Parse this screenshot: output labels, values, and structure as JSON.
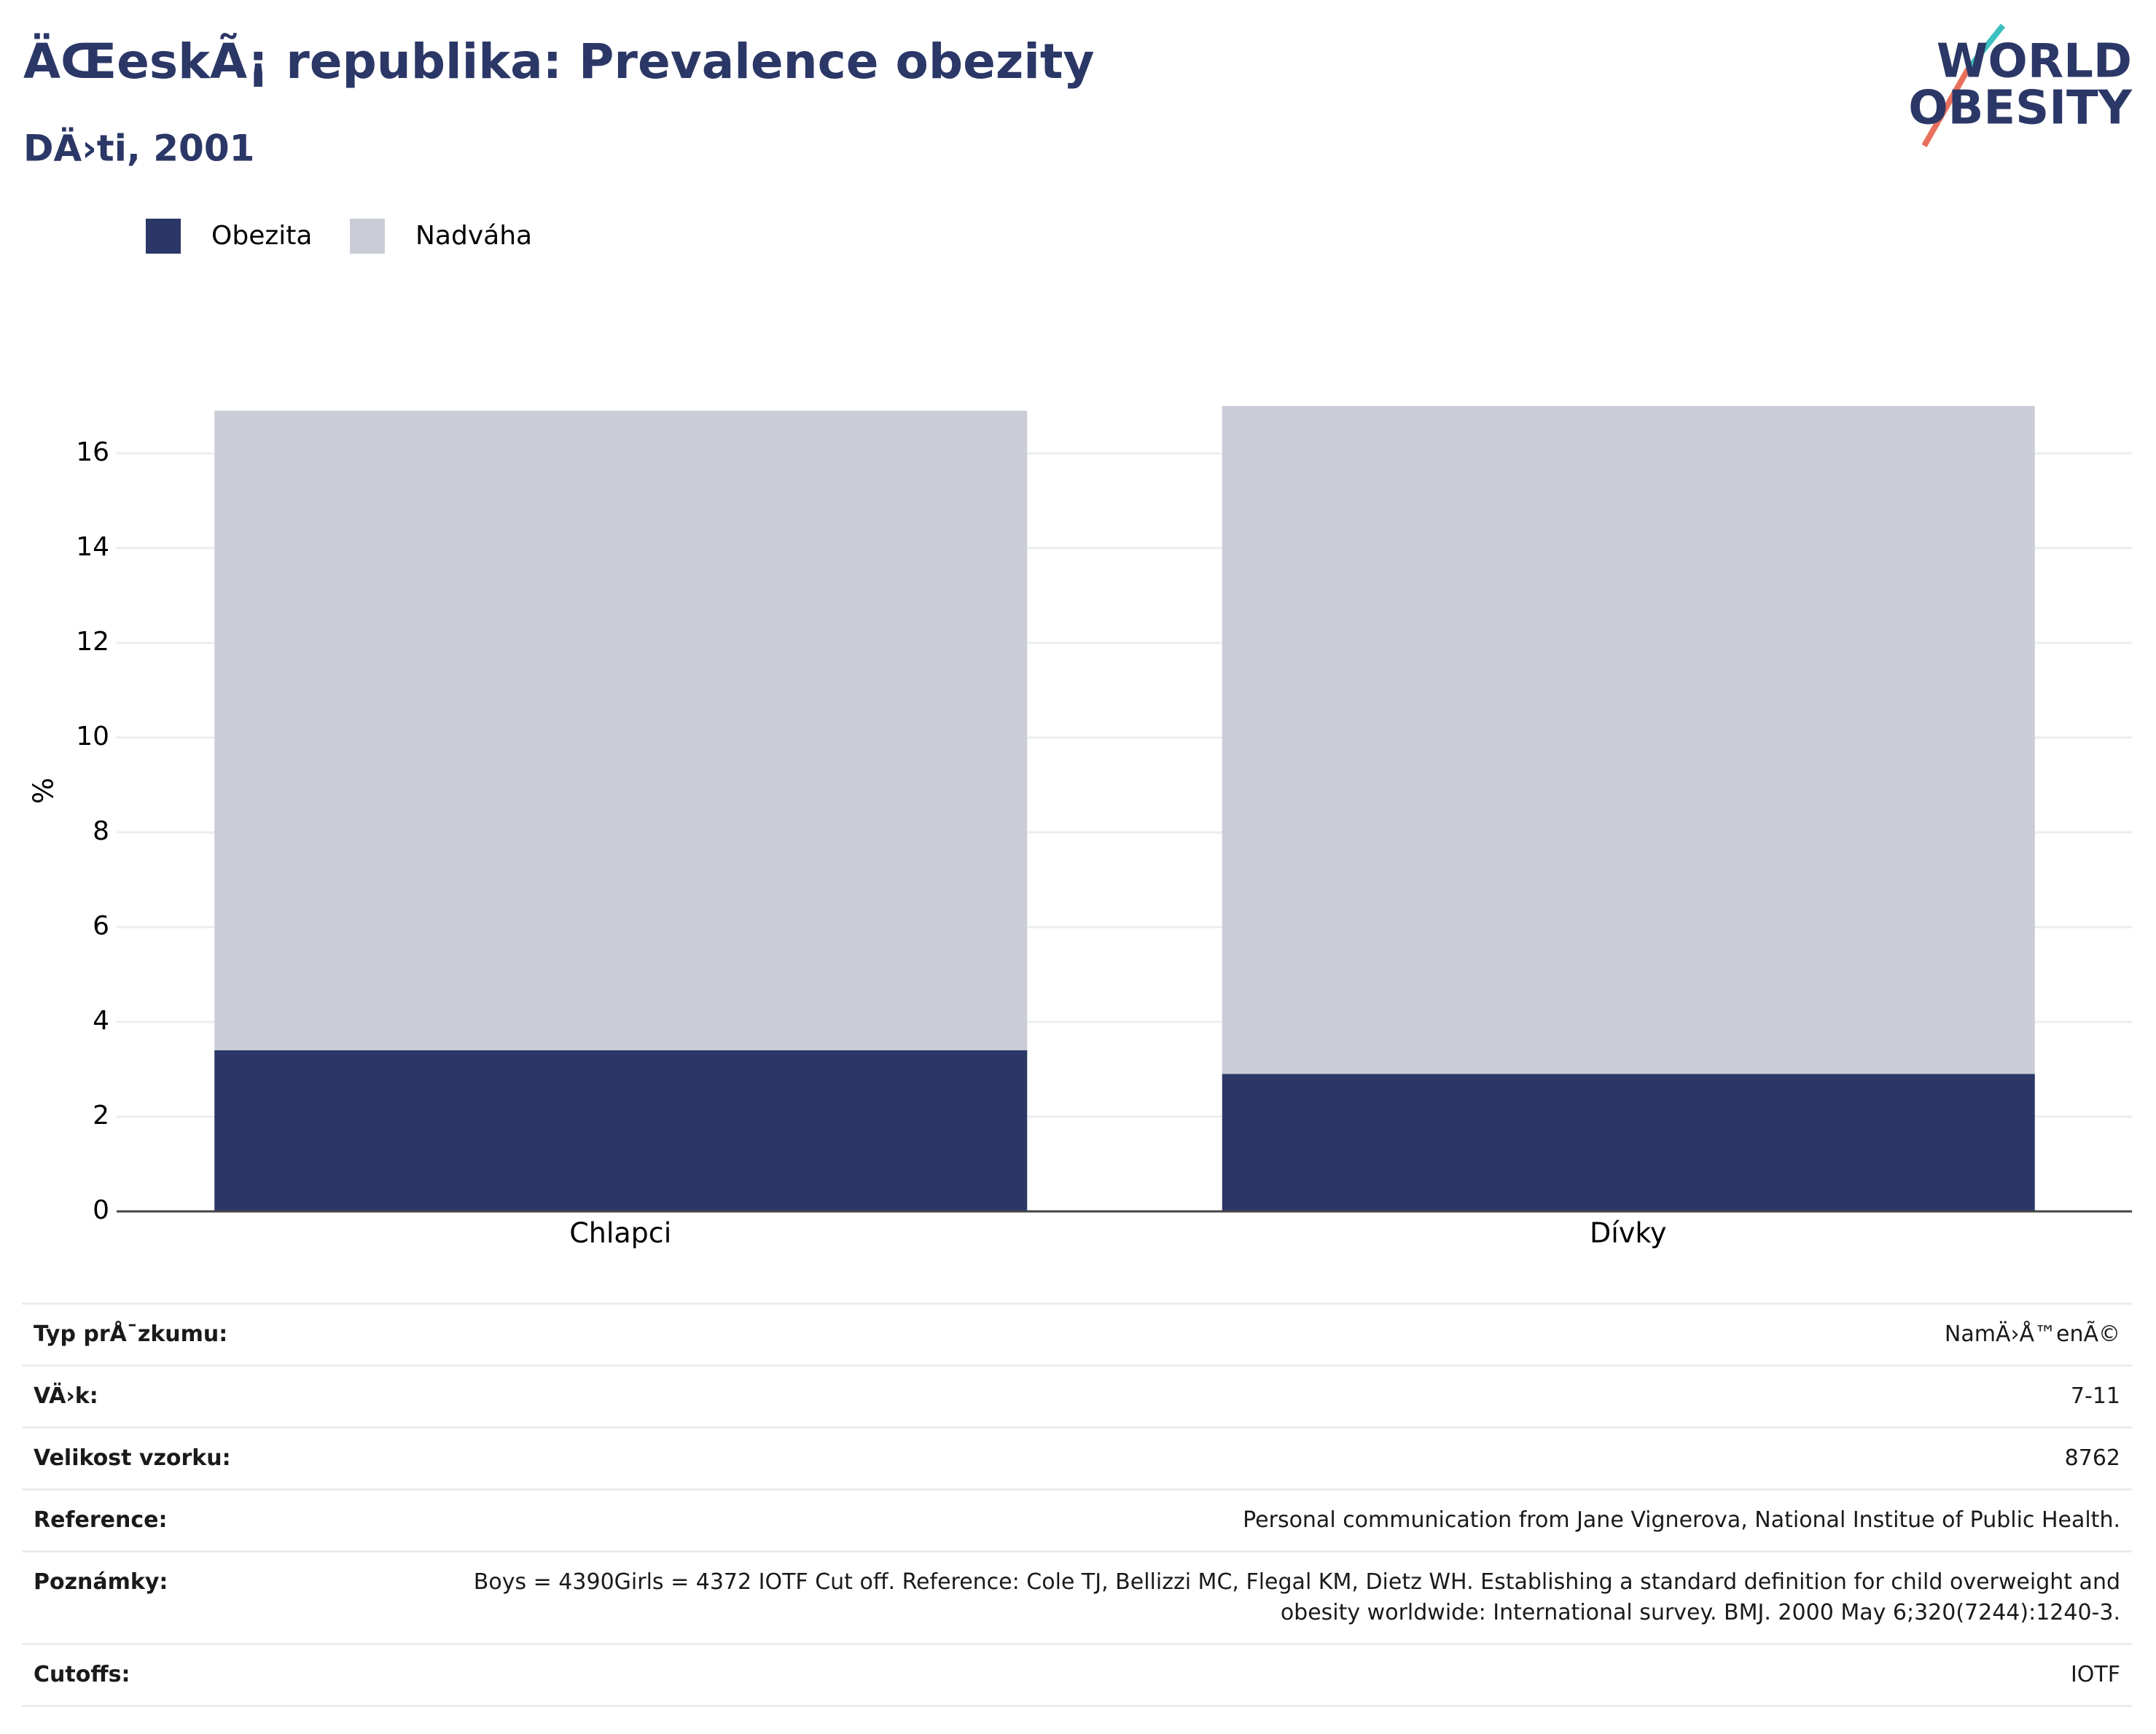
{
  "chart_data": {
    "type": "stacked-bar",
    "title": "ÄŒeskÃ¡ republika: Prevalence obezity",
    "subtitle": "DÄ›ti, 2001",
    "y_label": "%",
    "categories": [
      "Chlapci",
      "Dívky"
    ],
    "series": [
      {
        "name": "Obezita",
        "color": "#2b3766",
        "values": [
          3.4,
          2.9
        ]
      },
      {
        "name": "Nadváha",
        "color": "#cacdd8",
        "values": [
          13.5,
          14.1
        ]
      }
    ],
    "ylim": [
      0,
      17.2
    ],
    "yticks": [
      0,
      2,
      4,
      6,
      8,
      10,
      12,
      14,
      16
    ],
    "grid": true
  },
  "logo": [
    "WORLD",
    "OBESITY"
  ],
  "table": {
    "rows": [
      [
        "Typ prÅ¯zkumu:",
        "NamÄ›Å™enÃ©"
      ],
      [
        "VÄ›k:",
        "7-11"
      ],
      [
        "Velikost vzorku:",
        "8762"
      ],
      [
        "Reference:",
        "Personal communication from Jane Vignerova, National Institue of Public Health."
      ],
      [
        "Poznámky:",
        "Boys = 4390Girls = 4372 IOTF Cut off. Reference: Cole TJ, Bellizzi MC, Flegal KM, Dietz WH. Establishing a standard definition for child overweight and obesity worldwide: International survey. BMJ. 2000 May 6;320(7244):1240-3."
      ],
      [
        "Cutoffs:",
        "IOTF"
      ]
    ]
  }
}
